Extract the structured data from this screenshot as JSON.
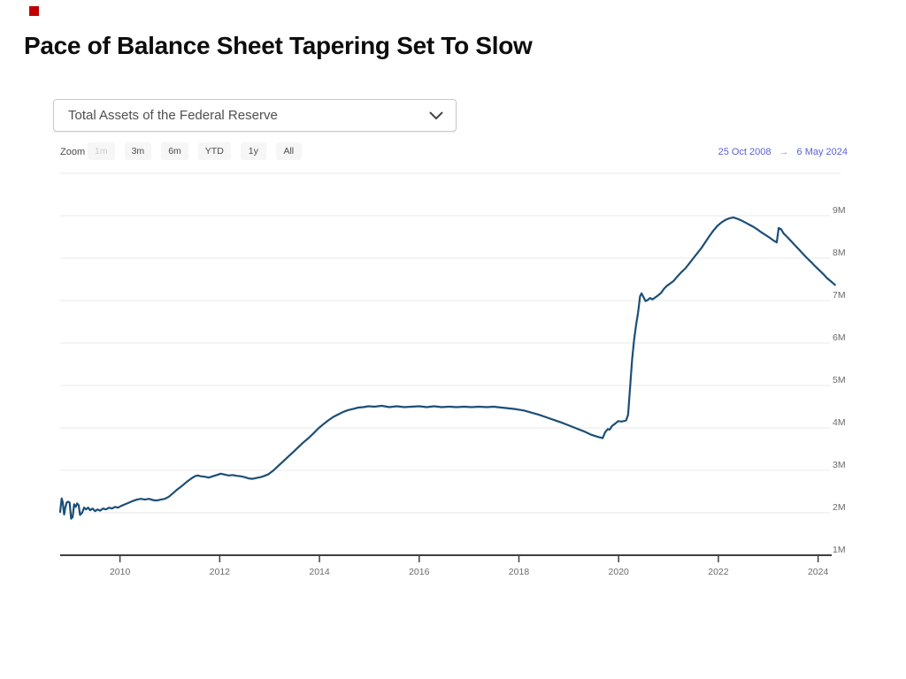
{
  "slide": {
    "title": "Pace of Balance Sheet Tapering Set To Slow",
    "accent_color": "#c00000"
  },
  "chart_widget": {
    "selector": {
      "value": "Total Assets of the Federal Reserve",
      "chevron_icon": "chevron-down"
    },
    "toolbar": {
      "zoom_label": "Zoom",
      "buttons": [
        {
          "label": "1m",
          "enabled": false
        },
        {
          "label": "3m",
          "enabled": true
        },
        {
          "label": "6m",
          "enabled": true
        },
        {
          "label": "YTD",
          "enabled": true
        },
        {
          "label": "1y",
          "enabled": true
        },
        {
          "label": "All",
          "enabled": true
        }
      ],
      "date_range": {
        "from": "25 Oct 2008",
        "arrow": "→",
        "to": "6 May 2024",
        "color": "#5a61d6"
      }
    }
  },
  "chart_data": {
    "type": "line",
    "title": "Total Assets of the Federal Reserve",
    "xlabel": "",
    "ylabel": "",
    "unit": "M (millions of USD)",
    "xlim": [
      2008.8,
      2024.45
    ],
    "ylim": [
      1,
      10
    ],
    "grid": true,
    "legend": "none",
    "y_axis_side": "right",
    "x_ticks": [
      2010,
      2012,
      2014,
      2016,
      2018,
      2020,
      2022,
      2024
    ],
    "y_ticks": [
      {
        "value": 1,
        "label": "1M"
      },
      {
        "value": 2,
        "label": "2M"
      },
      {
        "value": 3,
        "label": "3M"
      },
      {
        "value": 4,
        "label": "4M"
      },
      {
        "value": 5,
        "label": "5M"
      },
      {
        "value": 6,
        "label": "6M"
      },
      {
        "value": 7,
        "label": "7M"
      },
      {
        "value": 8,
        "label": "8M"
      },
      {
        "value": 9,
        "label": "9M"
      }
    ],
    "colors": {
      "line": "#1c4e78",
      "grid": "#e8e8e8",
      "axis": "#3f3f3f",
      "tick_label": "#6b6b6b"
    },
    "series": [
      {
        "name": "Total Assets of the Federal Reserve",
        "points": [
          [
            2008.8,
            2.02
          ],
          [
            2008.83,
            2.34
          ],
          [
            2008.85,
            2.26
          ],
          [
            2008.88,
            1.96
          ],
          [
            2008.9,
            2.1
          ],
          [
            2008.93,
            2.24
          ],
          [
            2008.96,
            2.26
          ],
          [
            2008.99,
            2.24
          ],
          [
            2009.02,
            1.86
          ],
          [
            2009.05,
            1.9
          ],
          [
            2009.08,
            2.2
          ],
          [
            2009.11,
            2.14
          ],
          [
            2009.14,
            2.22
          ],
          [
            2009.17,
            2.18
          ],
          [
            2009.2,
            1.95
          ],
          [
            2009.24,
            2.0
          ],
          [
            2009.28,
            2.12
          ],
          [
            2009.32,
            2.08
          ],
          [
            2009.36,
            2.12
          ],
          [
            2009.4,
            2.06
          ],
          [
            2009.45,
            2.1
          ],
          [
            2009.5,
            2.04
          ],
          [
            2009.55,
            2.08
          ],
          [
            2009.6,
            2.05
          ],
          [
            2009.66,
            2.1
          ],
          [
            2009.72,
            2.08
          ],
          [
            2009.78,
            2.12
          ],
          [
            2009.84,
            2.1
          ],
          [
            2009.9,
            2.14
          ],
          [
            2009.96,
            2.12
          ],
          [
            2010.02,
            2.16
          ],
          [
            2010.1,
            2.2
          ],
          [
            2010.18,
            2.24
          ],
          [
            2010.26,
            2.28
          ],
          [
            2010.34,
            2.31
          ],
          [
            2010.42,
            2.33
          ],
          [
            2010.5,
            2.31
          ],
          [
            2010.58,
            2.33
          ],
          [
            2010.66,
            2.3
          ],
          [
            2010.74,
            2.29
          ],
          [
            2010.82,
            2.31
          ],
          [
            2010.9,
            2.33
          ],
          [
            2010.98,
            2.38
          ],
          [
            2011.06,
            2.46
          ],
          [
            2011.15,
            2.55
          ],
          [
            2011.24,
            2.63
          ],
          [
            2011.33,
            2.72
          ],
          [
            2011.42,
            2.8
          ],
          [
            2011.5,
            2.86
          ],
          [
            2011.56,
            2.88
          ],
          [
            2011.62,
            2.86
          ],
          [
            2011.7,
            2.85
          ],
          [
            2011.78,
            2.83
          ],
          [
            2011.86,
            2.86
          ],
          [
            2011.94,
            2.89
          ],
          [
            2012.02,
            2.92
          ],
          [
            2012.1,
            2.9
          ],
          [
            2012.18,
            2.88
          ],
          [
            2012.26,
            2.89
          ],
          [
            2012.34,
            2.87
          ],
          [
            2012.42,
            2.86
          ],
          [
            2012.5,
            2.84
          ],
          [
            2012.58,
            2.81
          ],
          [
            2012.66,
            2.8
          ],
          [
            2012.74,
            2.82
          ],
          [
            2012.82,
            2.84
          ],
          [
            2012.9,
            2.87
          ],
          [
            2012.98,
            2.91
          ],
          [
            2013.08,
            3.0
          ],
          [
            2013.18,
            3.11
          ],
          [
            2013.28,
            3.22
          ],
          [
            2013.38,
            3.33
          ],
          [
            2013.48,
            3.44
          ],
          [
            2013.58,
            3.55
          ],
          [
            2013.68,
            3.66
          ],
          [
            2013.78,
            3.76
          ],
          [
            2013.88,
            3.87
          ],
          [
            2013.98,
            3.99
          ],
          [
            2014.08,
            4.09
          ],
          [
            2014.18,
            4.18
          ],
          [
            2014.28,
            4.26
          ],
          [
            2014.38,
            4.32
          ],
          [
            2014.48,
            4.38
          ],
          [
            2014.58,
            4.42
          ],
          [
            2014.68,
            4.45
          ],
          [
            2014.78,
            4.48
          ],
          [
            2014.88,
            4.49
          ],
          [
            2014.98,
            4.51
          ],
          [
            2015.1,
            4.5
          ],
          [
            2015.25,
            4.52
          ],
          [
            2015.4,
            4.49
          ],
          [
            2015.55,
            4.51
          ],
          [
            2015.7,
            4.49
          ],
          [
            2015.85,
            4.5
          ],
          [
            2016.0,
            4.51
          ],
          [
            2016.15,
            4.49
          ],
          [
            2016.3,
            4.51
          ],
          [
            2016.45,
            4.49
          ],
          [
            2016.6,
            4.5
          ],
          [
            2016.75,
            4.49
          ],
          [
            2016.9,
            4.5
          ],
          [
            2017.05,
            4.49
          ],
          [
            2017.2,
            4.5
          ],
          [
            2017.35,
            4.49
          ],
          [
            2017.5,
            4.5
          ],
          [
            2017.65,
            4.48
          ],
          [
            2017.8,
            4.46
          ],
          [
            2017.95,
            4.44
          ],
          [
            2018.1,
            4.41
          ],
          [
            2018.25,
            4.36
          ],
          [
            2018.4,
            4.31
          ],
          [
            2018.55,
            4.25
          ],
          [
            2018.7,
            4.19
          ],
          [
            2018.85,
            4.13
          ],
          [
            2019.0,
            4.06
          ],
          [
            2019.15,
            3.99
          ],
          [
            2019.3,
            3.92
          ],
          [
            2019.45,
            3.84
          ],
          [
            2019.58,
            3.79
          ],
          [
            2019.68,
            3.76
          ],
          [
            2019.73,
            3.9
          ],
          [
            2019.78,
            3.97
          ],
          [
            2019.82,
            3.96
          ],
          [
            2019.87,
            4.05
          ],
          [
            2019.93,
            4.1
          ],
          [
            2019.99,
            4.16
          ],
          [
            2020.05,
            4.15
          ],
          [
            2020.1,
            4.16
          ],
          [
            2020.15,
            4.18
          ],
          [
            2020.19,
            4.31
          ],
          [
            2020.23,
            4.97
          ],
          [
            2020.27,
            5.6
          ],
          [
            2020.31,
            6.08
          ],
          [
            2020.35,
            6.42
          ],
          [
            2020.39,
            6.72
          ],
          [
            2020.43,
            7.1
          ],
          [
            2020.46,
            7.17
          ],
          [
            2020.5,
            7.08
          ],
          [
            2020.54,
            6.99
          ],
          [
            2020.58,
            7.01
          ],
          [
            2020.63,
            7.06
          ],
          [
            2020.68,
            7.03
          ],
          [
            2020.73,
            7.07
          ],
          [
            2020.79,
            7.12
          ],
          [
            2020.85,
            7.18
          ],
          [
            2020.91,
            7.28
          ],
          [
            2020.97,
            7.35
          ],
          [
            2021.03,
            7.4
          ],
          [
            2021.1,
            7.46
          ],
          [
            2021.18,
            7.57
          ],
          [
            2021.26,
            7.67
          ],
          [
            2021.34,
            7.76
          ],
          [
            2021.42,
            7.88
          ],
          [
            2021.5,
            8.0
          ],
          [
            2021.58,
            8.12
          ],
          [
            2021.66,
            8.24
          ],
          [
            2021.74,
            8.38
          ],
          [
            2021.82,
            8.52
          ],
          [
            2021.9,
            8.65
          ],
          [
            2021.98,
            8.76
          ],
          [
            2022.06,
            8.84
          ],
          [
            2022.14,
            8.9
          ],
          [
            2022.22,
            8.94
          ],
          [
            2022.3,
            8.96
          ],
          [
            2022.38,
            8.93
          ],
          [
            2022.46,
            8.89
          ],
          [
            2022.54,
            8.84
          ],
          [
            2022.62,
            8.79
          ],
          [
            2022.7,
            8.74
          ],
          [
            2022.78,
            8.68
          ],
          [
            2022.86,
            8.61
          ],
          [
            2022.94,
            8.55
          ],
          [
            2023.02,
            8.49
          ],
          [
            2023.1,
            8.42
          ],
          [
            2023.17,
            8.37
          ],
          [
            2023.21,
            8.71
          ],
          [
            2023.26,
            8.68
          ],
          [
            2023.31,
            8.58
          ],
          [
            2023.38,
            8.5
          ],
          [
            2023.46,
            8.4
          ],
          [
            2023.54,
            8.3
          ],
          [
            2023.62,
            8.2
          ],
          [
            2023.7,
            8.1
          ],
          [
            2023.78,
            8.0
          ],
          [
            2023.86,
            7.91
          ],
          [
            2023.94,
            7.81
          ],
          [
            2024.02,
            7.72
          ],
          [
            2024.1,
            7.63
          ],
          [
            2024.18,
            7.53
          ],
          [
            2024.26,
            7.45
          ],
          [
            2024.34,
            7.37
          ]
        ]
      }
    ]
  }
}
